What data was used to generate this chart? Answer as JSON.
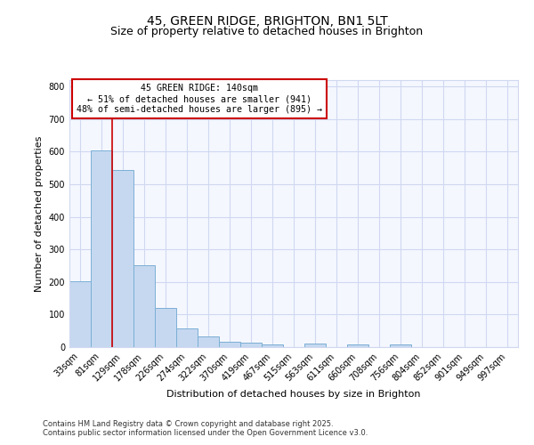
{
  "title": "45, GREEN RIDGE, BRIGHTON, BN1 5LT",
  "subtitle": "Size of property relative to detached houses in Brighton",
  "xlabel": "Distribution of detached houses by size in Brighton",
  "ylabel": "Number of detached properties",
  "categories": [
    "33sqm",
    "81sqm",
    "129sqm",
    "178sqm",
    "226sqm",
    "274sqm",
    "322sqm",
    "370sqm",
    "419sqm",
    "467sqm",
    "515sqm",
    "563sqm",
    "611sqm",
    "660sqm",
    "708sqm",
    "756sqm",
    "804sqm",
    "852sqm",
    "901sqm",
    "949sqm",
    "997sqm"
  ],
  "values": [
    203,
    605,
    543,
    252,
    120,
    57,
    33,
    17,
    13,
    9,
    0,
    10,
    0,
    7,
    0,
    7,
    0,
    0,
    0,
    0,
    0
  ],
  "bar_color": "#c5d8f0",
  "bar_edge_color": "#7bafd4",
  "red_line_index": 2,
  "red_line_color": "#cc0000",
  "annotation_text": "45 GREEN RIDGE: 140sqm\n← 51% of detached houses are smaller (941)\n48% of semi-detached houses are larger (895) →",
  "annotation_box_facecolor": "#ffffff",
  "annotation_box_edgecolor": "#cc0000",
  "ylim": [
    0,
    820
  ],
  "yticks": [
    0,
    100,
    200,
    300,
    400,
    500,
    600,
    700,
    800
  ],
  "background_color": "#ffffff",
  "plot_bg_color": "#f5f7ff",
  "grid_color": "#d0d8f0",
  "title_fontsize": 10,
  "subtitle_fontsize": 9,
  "axis_label_fontsize": 8,
  "tick_fontsize": 7,
  "footer_line1": "Contains HM Land Registry data © Crown copyright and database right 2025.",
  "footer_line2": "Contains public sector information licensed under the Open Government Licence v3.0."
}
